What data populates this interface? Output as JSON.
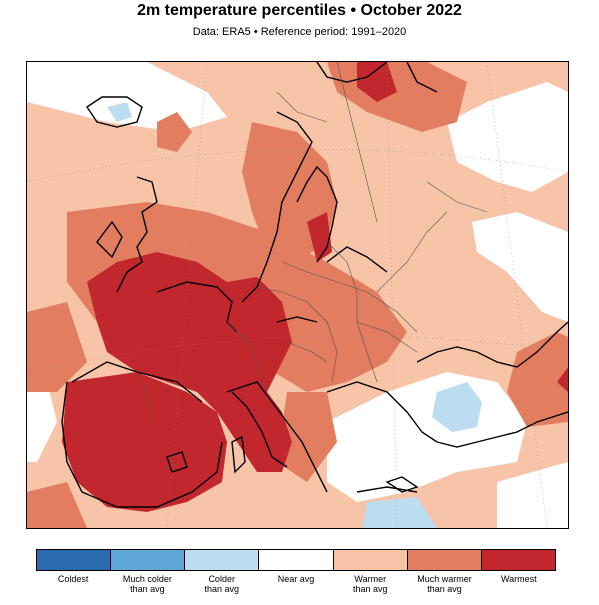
{
  "title": "2m temperature percentiles • October 2022",
  "subtitle": "Data: ERA5 • Reference period: 1991–2020",
  "legend": {
    "categories": [
      {
        "label": "Coldest",
        "color": "#2b6cb0"
      },
      {
        "label": "Much colder\nthan avg",
        "color": "#5fa6d8"
      },
      {
        "label": "Colder\nthan avg",
        "color": "#bcdcf0"
      },
      {
        "label": "Near avg",
        "color": "#ffffff"
      },
      {
        "label": "Warmer\nthan avg",
        "color": "#f7c4a8"
      },
      {
        "label": "Much warmer\nthan avg",
        "color": "#e27d5f"
      },
      {
        "label": "Warmest",
        "color": "#c1272d"
      }
    ]
  },
  "map": {
    "region": "Europe",
    "colors": {
      "background": "#f7c4a8",
      "warmest": "#c1272d",
      "much_warmer": "#e27d5f",
      "near_avg": "#ffffff",
      "colder": "#bcdcf0",
      "coastline": "#000000",
      "border": "#555555"
    }
  }
}
